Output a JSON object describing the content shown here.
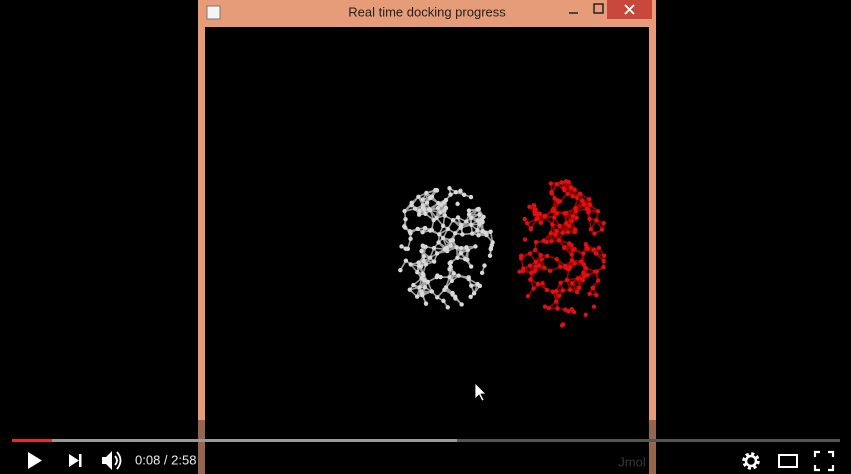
{
  "window": {
    "title": "Real time docking progress",
    "watermark": "Jmol"
  },
  "player": {
    "time": "0:08 / 2:58"
  }
}
